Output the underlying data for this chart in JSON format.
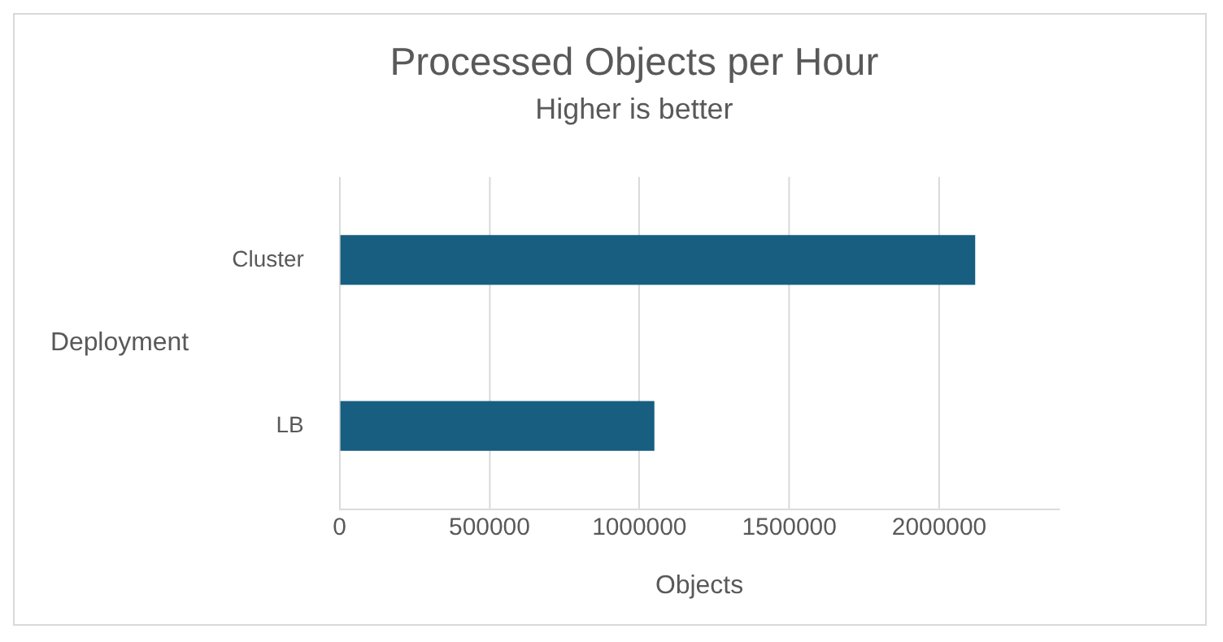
{
  "chart_data": {
    "type": "bar",
    "orientation": "horizontal",
    "title": "Processed Objects per Hour",
    "subtitle": "Higher is better",
    "xlabel": "Objects",
    "ylabel": "Deployment",
    "categories": [
      "Cluster",
      "LB"
    ],
    "series": [
      {
        "color": "#175e80",
        "values": [
          2120000,
          1050000
        ]
      }
    ],
    "xlim": [
      0,
      2400000
    ],
    "xticks": [
      0,
      500000,
      1000000,
      1500000,
      2000000
    ],
    "grid": "x",
    "legend": false
  }
}
